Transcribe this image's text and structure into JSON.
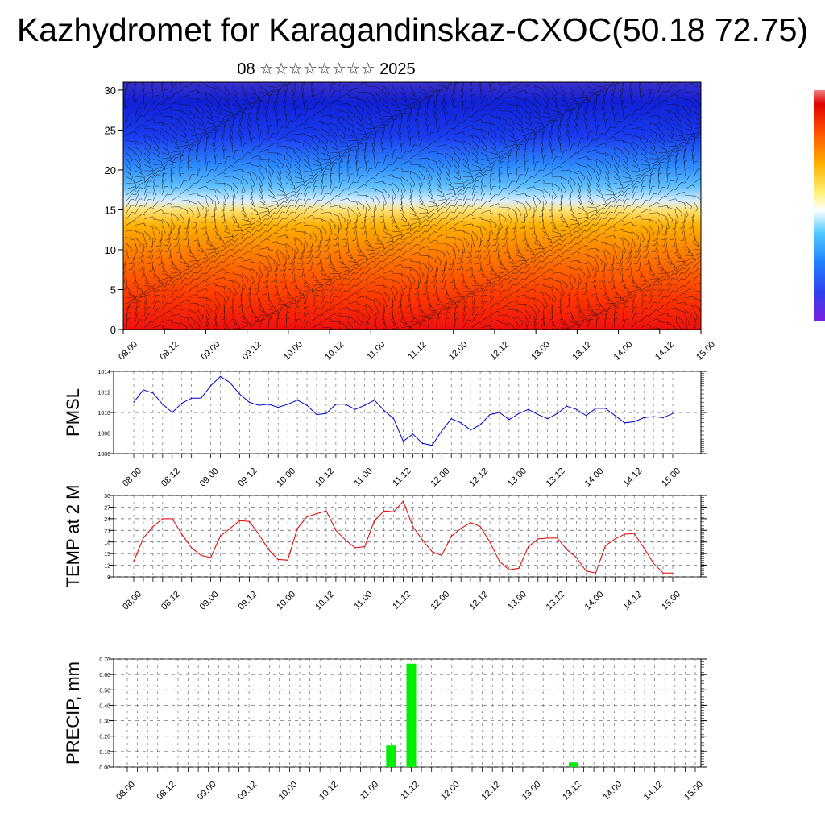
{
  "header": {
    "title": "Kazhydromet for Karagandinskaz-CXOC(50.18 72.75)",
    "subtitle": "08 ☆☆☆☆☆☆☆☆ 2025"
  },
  "time_labels": [
    "08.00",
    "08.12",
    "09.00",
    "09.12",
    "10.00",
    "10.12",
    "11.00",
    "11.12",
    "12.00",
    "12.12",
    "13.00",
    "13.12",
    "14.00",
    "14.12",
    "15.00"
  ],
  "colors": {
    "pmsl_line": "#0000cc",
    "temp_line": "#dd0000",
    "precip_bar": "#00ee00",
    "grid": "#555555"
  },
  "chart_data": [
    {
      "type": "heatmap",
      "name": "cross-section",
      "yticks": [
        0,
        5,
        10,
        15,
        20,
        25,
        30
      ],
      "ylim": [
        0,
        31
      ],
      "x": [
        "08.00",
        "08.12",
        "09.00",
        "09.12",
        "10.00",
        "10.12",
        "11.00",
        "11.12",
        "12.00",
        "12.12",
        "13.00",
        "13.12",
        "14.00",
        "14.12",
        "15.00"
      ],
      "colormap": "warm (bottom) to cold (top), wind barbs overlaid"
    },
    {
      "type": "line",
      "ylabel": "PMSL",
      "ylim": [
        1006,
        1014
      ],
      "yticks": [
        1006,
        1008,
        1010,
        1012,
        1014
      ],
      "x_steps_per_label": 4,
      "values": [
        1011.0,
        1012.2,
        1011.9,
        1010.8,
        1010.0,
        1010.9,
        1011.4,
        1011.4,
        1012.6,
        1013.5,
        1012.9,
        1011.8,
        1011.0,
        1010.7,
        1010.8,
        1010.5,
        1010.8,
        1011.2,
        1010.7,
        1009.8,
        1009.9,
        1010.8,
        1010.8,
        1010.3,
        1010.7,
        1011.2,
        1010.2,
        1009.4,
        1007.2,
        1007.9,
        1007.0,
        1006.8,
        1008.2,
        1009.4,
        1009.0,
        1008.3,
        1008.8,
        1009.8,
        1010.0,
        1009.3,
        1009.9,
        1010.3,
        1009.8,
        1009.4,
        1009.9,
        1010.6,
        1010.3,
        1009.7,
        1010.4,
        1010.4,
        1009.7,
        1009.0,
        1009.1,
        1009.5,
        1009.6,
        1009.5,
        1009.9
      ]
    },
    {
      "type": "line",
      "ylabel": "TEMP at 2 M",
      "ylim": [
        9,
        30
      ],
      "yticks": [
        9,
        12,
        15,
        18,
        21,
        24,
        27,
        30
      ],
      "x_steps_per_label": 4,
      "values": [
        13.0,
        19.0,
        22.0,
        24.0,
        24.0,
        20.0,
        16.5,
        14.5,
        14.0,
        19.5,
        21.5,
        23.5,
        23.3,
        20.0,
        16.0,
        13.5,
        13.3,
        21.5,
        24.5,
        25.3,
        26.0,
        21.0,
        18.5,
        16.5,
        16.8,
        23.5,
        26.0,
        25.8,
        28.5,
        22.0,
        18.5,
        15.5,
        14.5,
        19.5,
        21.5,
        23.0,
        22.0,
        18.0,
        13.0,
        10.8,
        11.2,
        16.8,
        18.8,
        19.0,
        19.0,
        16.0,
        14.0,
        10.5,
        10.0,
        17.0,
        18.8,
        20.0,
        20.2,
        16.5,
        12.5,
        10.0,
        10.0
      ]
    },
    {
      "type": "bar",
      "ylabel": "PRECIP, mm",
      "ylim": [
        0,
        0.7
      ],
      "yticks": [
        "0.00",
        "0.10",
        "0.20",
        "0.30",
        "0.40",
        "0.50",
        "0.60",
        "0.70"
      ],
      "bars": [
        {
          "x": "11.06",
          "value": 0.14
        },
        {
          "x": "11.12",
          "value": 0.67
        },
        {
          "x": "13.12",
          "value": 0.03
        }
      ]
    }
  ]
}
